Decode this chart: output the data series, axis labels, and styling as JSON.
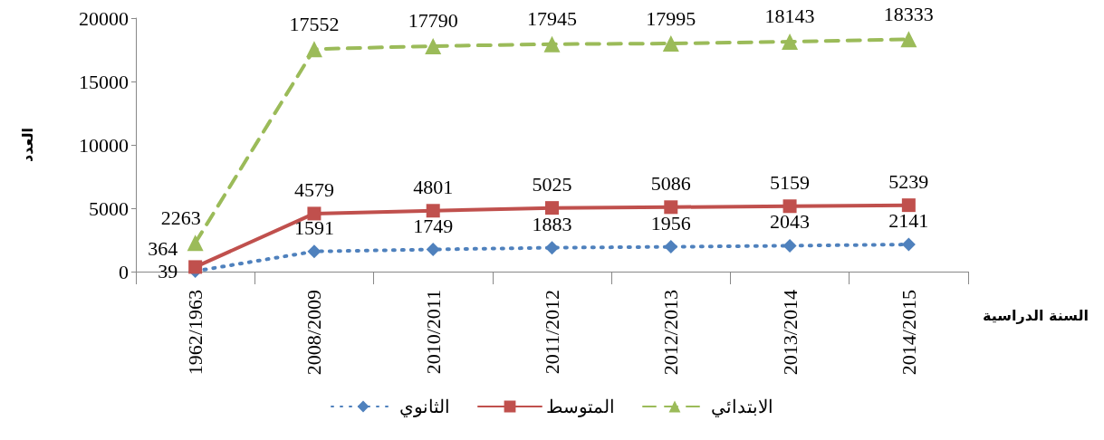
{
  "chart_data": {
    "type": "line",
    "xlabel": "السنة الدراسية",
    "ylabel": "العدد",
    "categories": [
      "1962/1963",
      "2008/2009",
      "2010/2011",
      "2011/2012",
      "2012/2013",
      "2013/2014",
      "2014/2015"
    ],
    "series": [
      {
        "name": "الثانوي",
        "color": "#4f81bd",
        "marker": "diamond",
        "line_style": "dotted",
        "values": [
          39,
          1591,
          1749,
          1883,
          1956,
          2043,
          2141
        ]
      },
      {
        "name": "المتوسط",
        "color": "#c0504d",
        "marker": "square",
        "line_style": "solid",
        "values": [
          364,
          4579,
          4801,
          5025,
          5086,
          5159,
          5239
        ]
      },
      {
        "name": "الابتدائي",
        "color": "#9bbb59",
        "marker": "triangle",
        "line_style": "dashed",
        "values": [
          2263,
          17552,
          17790,
          17945,
          17995,
          18143,
          18333
        ]
      }
    ],
    "ylim": [
      0,
      20000
    ],
    "yticks": [
      0,
      5000,
      10000,
      15000,
      20000
    ],
    "grid": false,
    "legend": "bottom",
    "data_labels": true
  }
}
